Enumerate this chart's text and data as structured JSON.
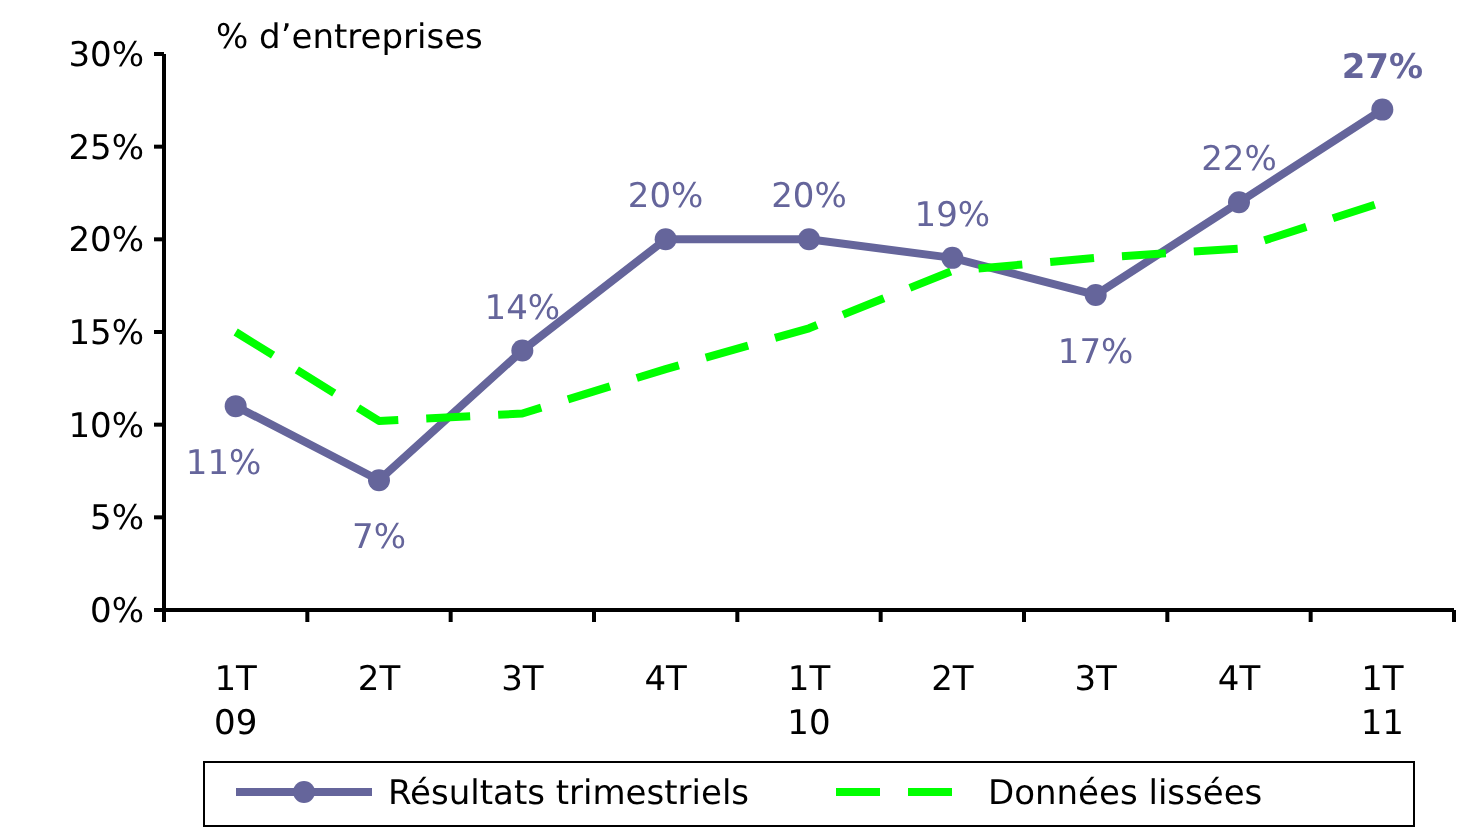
{
  "chart_data": {
    "type": "line",
    "title": "% d’entreprises",
    "categories": [
      "1T\n09",
      "2T",
      "3T",
      "4T",
      "1T\n10",
      "2T",
      "3T",
      "4T",
      "1T\n11"
    ],
    "series": [
      {
        "name": "Résultats trimestriels",
        "color": "#65659b",
        "values": [
          11,
          7,
          14,
          20,
          20,
          19,
          17,
          22,
          27
        ],
        "marker": "circle",
        "line_style": "solid",
        "value_labels": [
          "11%",
          "7%",
          "14%",
          "20%",
          "20%",
          "19%",
          "17%",
          "22%",
          "27%"
        ]
      },
      {
        "name": "Données lissées",
        "color": "#00ff00",
        "values": [
          15,
          10.2,
          10.6,
          13,
          15.2,
          18.3,
          19,
          19.5,
          22
        ],
        "marker": "none",
        "line_style": "dashed"
      }
    ],
    "ylim": [
      0,
      30
    ],
    "yticks": [
      {
        "value": 0,
        "label": "0%"
      },
      {
        "value": 5,
        "label": "5%"
      },
      {
        "value": 10,
        "label": "10%"
      },
      {
        "value": 15,
        "label": "15%"
      },
      {
        "value": 20,
        "label": "20%"
      },
      {
        "value": 25,
        "label": "25%"
      },
      {
        "value": 30,
        "label": "30%"
      }
    ],
    "grid": false,
    "legend": "bottom"
  }
}
